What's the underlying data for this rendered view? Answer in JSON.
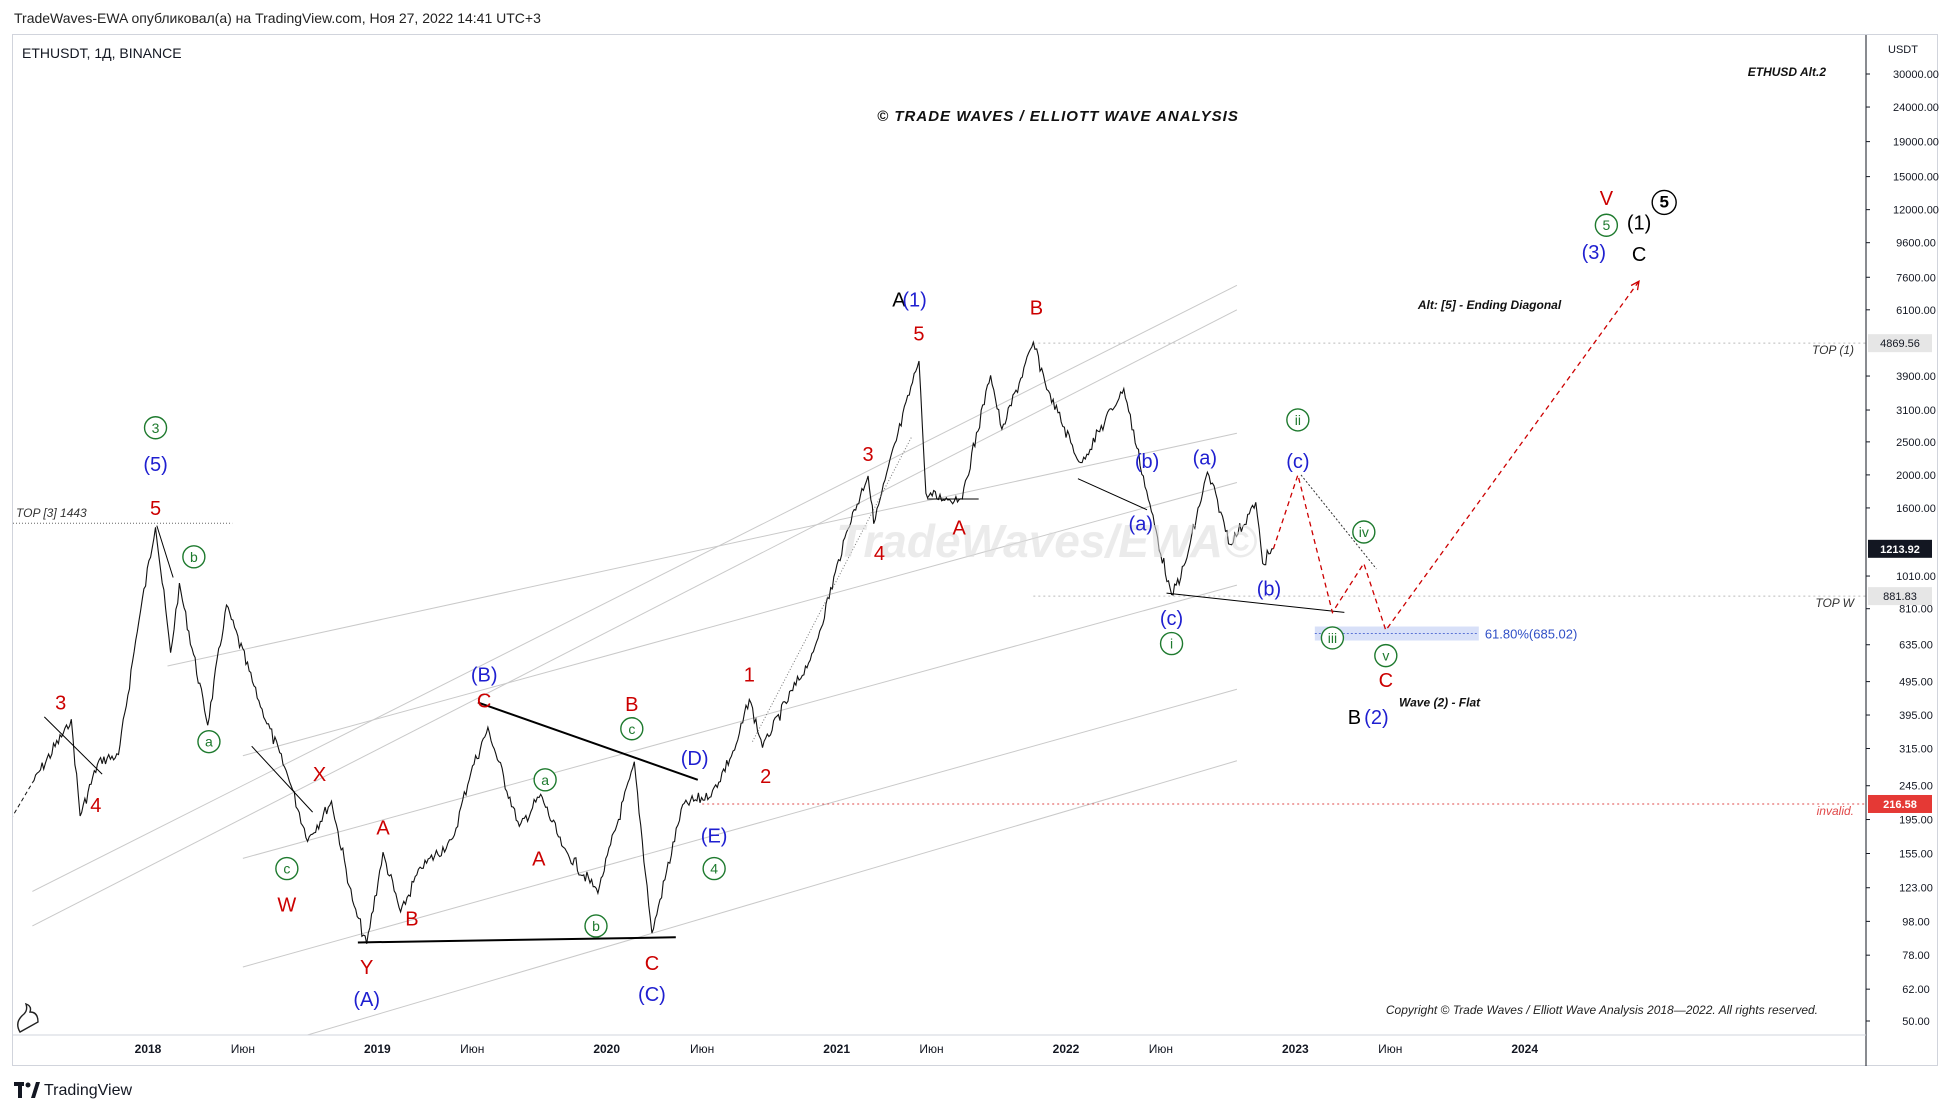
{
  "header": {
    "published_by": "TradeWaves-EWA опубликовал(а) на TradingView.com, Ноя 27, 2022 14:41 UTC+3"
  },
  "footer": {
    "brand": "TradingView"
  },
  "colors": {
    "red": "#cc0000",
    "blue": "#1f1fd0",
    "green": "#1e7a2e",
    "black": "#000000",
    "grid_channel": "#c9c9c9",
    "fib_zone": "#b8c6f2",
    "invalid_line": "#e04848",
    "price_tag_current": "#131722",
    "price_tag_invalid": "#e53935"
  },
  "chart_data": {
    "type": "line",
    "symbol_label": "ETHUSDT, 1Д, BINANCE",
    "title": "© TRADE WAVES / ELLIOTT WAVE ANALYSIS",
    "top_right_note": "ETHUSD  Alt.2",
    "copyright": "Copyright © Trade Waves / Elliott Wave Analysis 2018—2022. All rights reserved.",
    "y_scale": "log",
    "y_unit": "USDT",
    "ylim": [
      50,
      30000
    ],
    "y_ticks": [
      30000,
      24000,
      19000,
      15000,
      12000,
      9600,
      7600,
      6100,
      4869.56,
      3900,
      3100,
      2500,
      2000,
      1600,
      1213.92,
      1010,
      881.83,
      810,
      635,
      495,
      395,
      315,
      245,
      216.58,
      195,
      155,
      123,
      98,
      78,
      62,
      50
    ],
    "y_tick_labels": [
      "30000.00",
      "24000.00",
      "19000.00",
      "15000.00",
      "12000.00",
      "9600.00",
      "7600.00",
      "6100.00",
      "4869.56",
      "3900.00",
      "3100.00",
      "2500.00",
      "2000.00",
      "1600.00",
      "1213.92",
      "1010.00",
      "881.83",
      "810.00",
      "635.00",
      "495.00",
      "395.00",
      "315.00",
      "245.00",
      "216.58",
      "195.00",
      "155.00",
      "123.00",
      "98.00",
      "78.00",
      "62.00",
      "50.00"
    ],
    "x_ticks": [
      {
        "date": "2018-01-01",
        "label": "2018",
        "bold": true
      },
      {
        "date": "2018-06-01",
        "label": "Июн",
        "bold": false
      },
      {
        "date": "2019-01-01",
        "label": "2019",
        "bold": true
      },
      {
        "date": "2019-06-01",
        "label": "Июн",
        "bold": false
      },
      {
        "date": "2020-01-01",
        "label": "2020",
        "bold": true
      },
      {
        "date": "2020-06-01",
        "label": "Июн",
        "bold": false
      },
      {
        "date": "2021-01-01",
        "label": "2021",
        "bold": true
      },
      {
        "date": "2021-06-01",
        "label": "Июн",
        "bold": false
      },
      {
        "date": "2022-01-01",
        "label": "2022",
        "bold": true
      },
      {
        "date": "2022-06-01",
        "label": "Июн",
        "bold": false
      },
      {
        "date": "2023-01-01",
        "label": "2023",
        "bold": true
      },
      {
        "date": "2023-06-01",
        "label": "Июн",
        "bold": false
      },
      {
        "date": "2024-01-01",
        "label": "2024",
        "bold": true
      }
    ],
    "price_series": [
      {
        "date": "2017-07-01",
        "price": 250
      },
      {
        "date": "2017-09-01",
        "price": 380
      },
      {
        "date": "2017-09-15",
        "price": 200
      },
      {
        "date": "2017-10-15",
        "price": 290
      },
      {
        "date": "2017-11-15",
        "price": 300
      },
      {
        "date": "2017-12-15",
        "price": 700
      },
      {
        "date": "2018-01-13",
        "price": 1420
      },
      {
        "date": "2018-02-06",
        "price": 600
      },
      {
        "date": "2018-02-20",
        "price": 950
      },
      {
        "date": "2018-04-06",
        "price": 370
      },
      {
        "date": "2018-05-06",
        "price": 830
      },
      {
        "date": "2018-06-29",
        "price": 420
      },
      {
        "date": "2018-08-14",
        "price": 255
      },
      {
        "date": "2018-09-12",
        "price": 170
      },
      {
        "date": "2018-10-20",
        "price": 220
      },
      {
        "date": "2018-11-25",
        "price": 108
      },
      {
        "date": "2018-12-15",
        "price": 84
      },
      {
        "date": "2019-01-10",
        "price": 155
      },
      {
        "date": "2019-02-07",
        "price": 104
      },
      {
        "date": "2019-03-10",
        "price": 140
      },
      {
        "date": "2019-05-01",
        "price": 170
      },
      {
        "date": "2019-05-30",
        "price": 270
      },
      {
        "date": "2019-06-26",
        "price": 360
      },
      {
        "date": "2019-08-15",
        "price": 185
      },
      {
        "date": "2019-09-18",
        "price": 230
      },
      {
        "date": "2019-10-24",
        "price": 160
      },
      {
        "date": "2019-12-18",
        "price": 120
      },
      {
        "date": "2020-02-14",
        "price": 285
      },
      {
        "date": "2020-03-13",
        "price": 90
      },
      {
        "date": "2020-05-01",
        "price": 215
      },
      {
        "date": "2020-06-15",
        "price": 230
      },
      {
        "date": "2020-07-25",
        "price": 320
      },
      {
        "date": "2020-08-15",
        "price": 440
      },
      {
        "date": "2020-09-05",
        "price": 320
      },
      {
        "date": "2020-11-25",
        "price": 600
      },
      {
        "date": "2021-01-19",
        "price": 1400
      },
      {
        "date": "2021-02-20",
        "price": 2000
      },
      {
        "date": "2021-03-01",
        "price": 1450
      },
      {
        "date": "2021-05-12",
        "price": 4370
      },
      {
        "date": "2021-05-23",
        "price": 1750
      },
      {
        "date": "2021-06-22",
        "price": 1700
      },
      {
        "date": "2021-07-20",
        "price": 1720
      },
      {
        "date": "2021-09-03",
        "price": 3950
      },
      {
        "date": "2021-09-21",
        "price": 2700
      },
      {
        "date": "2021-11-10",
        "price": 4869.56
      },
      {
        "date": "2021-12-04",
        "price": 3500
      },
      {
        "date": "2022-01-24",
        "price": 2150
      },
      {
        "date": "2022-04-03",
        "price": 3580
      },
      {
        "date": "2022-05-12",
        "price": 1700
      },
      {
        "date": "2022-06-18",
        "price": 880
      },
      {
        "date": "2022-07-10",
        "price": 1100
      },
      {
        "date": "2022-08-14",
        "price": 2030
      },
      {
        "date": "2022-09-07",
        "price": 1500
      },
      {
        "date": "2022-09-19",
        "price": 1250
      },
      {
        "date": "2022-10-30",
        "price": 1650
      },
      {
        "date": "2022-11-10",
        "price": 1100
      },
      {
        "date": "2022-11-27",
        "price": 1213.92
      }
    ],
    "projection_path": [
      {
        "date": "2022-11-27",
        "price": 1213.92
      },
      {
        "date": "2023-01-05",
        "price": 2000
      },
      {
        "date": "2023-03-01",
        "price": 790
      },
      {
        "date": "2023-04-20",
        "price": 1100
      },
      {
        "date": "2023-05-25",
        "price": 700
      },
      {
        "date": "2024-07-01",
        "price": 7400
      }
    ],
    "levels": [
      {
        "name": "top_1",
        "price": 4869.56,
        "label": "TOP (1)"
      },
      {
        "name": "top_w",
        "price": 881.83,
        "label": "TOP W"
      },
      {
        "name": "top_3",
        "price": 1443,
        "label": "TOP [3] 1443"
      },
      {
        "name": "invalid",
        "price": 216.58,
        "label": "invalid."
      }
    ],
    "fib_zone": {
      "label": "61.80%(685.02)",
      "price": 685.02
    },
    "current_price": 1213.92,
    "text_annotations": [
      {
        "text": "Alt: [5] - Ending Diagonal",
        "date": "2023-07-15",
        "price": 6300,
        "style": "note"
      },
      {
        "text": "Wave (2) - Flat",
        "date": "2023-06-15",
        "price": 430,
        "style": "note"
      }
    ],
    "wave_labels": [
      {
        "text": "3",
        "color": "red",
        "date": "2017-08-15",
        "price": 430
      },
      {
        "text": "4",
        "color": "red",
        "date": "2017-10-10",
        "price": 215
      },
      {
        "text": "5",
        "color": "red",
        "date": "2018-01-13",
        "price": 1600
      },
      {
        "text": "(5)",
        "color": "blue",
        "date": "2018-01-13",
        "price": 2150
      },
      {
        "text": "3",
        "color": "green_circle",
        "date": "2018-01-13",
        "price": 2750
      },
      {
        "text": "b",
        "color": "green_circle",
        "date": "2018-03-15",
        "price": 1150
      },
      {
        "text": "a",
        "color": "green_circle",
        "date": "2018-04-08",
        "price": 330
      },
      {
        "text": "X",
        "color": "red",
        "date": "2018-10-01",
        "price": 265
      },
      {
        "text": "c",
        "color": "green_circle",
        "date": "2018-08-10",
        "price": 140
      },
      {
        "text": "W",
        "color": "red",
        "date": "2018-08-10",
        "price": 110
      },
      {
        "text": "A",
        "color": "red",
        "date": "2019-01-10",
        "price": 185
      },
      {
        "text": "B",
        "color": "red",
        "date": "2019-02-25",
        "price": 100
      },
      {
        "text": "Y",
        "color": "red",
        "date": "2018-12-15",
        "price": 72
      },
      {
        "text": "(A)",
        "color": "blue",
        "date": "2018-12-15",
        "price": 58
      },
      {
        "text": "(B)",
        "color": "blue",
        "date": "2019-06-20",
        "price": 520
      },
      {
        "text": "C",
        "color": "red",
        "date": "2019-06-20",
        "price": 435
      },
      {
        "text": "a",
        "color": "green_circle",
        "date": "2019-09-25",
        "price": 255
      },
      {
        "text": "A",
        "color": "red",
        "date": "2019-09-15",
        "price": 150
      },
      {
        "text": "b",
        "color": "green_circle",
        "date": "2019-12-15",
        "price": 95
      },
      {
        "text": "B",
        "color": "red",
        "date": "2020-02-10",
        "price": 425
      },
      {
        "text": "c",
        "color": "green_circle",
        "date": "2020-02-10",
        "price": 360
      },
      {
        "text": "C",
        "color": "red",
        "date": "2020-03-13",
        "price": 74
      },
      {
        "text": "(C)",
        "color": "blue",
        "date": "2020-03-13",
        "price": 60
      },
      {
        "text": "(D)",
        "color": "blue",
        "date": "2020-05-20",
        "price": 295
      },
      {
        "text": "(E)",
        "color": "blue",
        "date": "2020-06-20",
        "price": 175
      },
      {
        "text": "4",
        "color": "green_circle",
        "date": "2020-06-20",
        "price": 140
      },
      {
        "text": "1",
        "color": "red",
        "date": "2020-08-15",
        "price": 520
      },
      {
        "text": "2",
        "color": "red",
        "date": "2020-09-10",
        "price": 262
      },
      {
        "text": "3",
        "color": "red",
        "date": "2021-02-20",
        "price": 2300
      },
      {
        "text": "4",
        "color": "red",
        "date": "2021-03-10",
        "price": 1180
      },
      {
        "text": "5",
        "color": "red",
        "date": "2021-05-12",
        "price": 5200
      },
      {
        "text": "A",
        "color": "black",
        "date": "2021-04-10",
        "price": 6550
      },
      {
        "text": "(1)",
        "color": "blue",
        "date": "2021-05-05",
        "price": 6550
      },
      {
        "text": "A",
        "color": "red",
        "date": "2021-07-15",
        "price": 1400
      },
      {
        "text": "B",
        "color": "red",
        "date": "2021-11-15",
        "price": 6200
      },
      {
        "text": "(b)",
        "color": "blue",
        "date": "2022-05-10",
        "price": 2200
      },
      {
        "text": "(a)",
        "color": "blue",
        "date": "2022-04-30",
        "price": 1440
      },
      {
        "text": "(c)",
        "color": "blue",
        "date": "2022-06-18",
        "price": 760
      },
      {
        "text": "i",
        "color": "green_circle",
        "date": "2022-06-18",
        "price": 640
      },
      {
        "text": "(a)",
        "color": "blue",
        "date": "2022-08-10",
        "price": 2250
      },
      {
        "text": "(b)",
        "color": "blue",
        "date": "2022-11-20",
        "price": 930
      },
      {
        "text": "ii",
        "color": "green_circle",
        "date": "2023-01-05",
        "price": 2900
      },
      {
        "text": "(c)",
        "color": "blue",
        "date": "2023-01-05",
        "price": 2200
      },
      {
        "text": "iii",
        "color": "green_circle",
        "date": "2023-03-01",
        "price": 665
      },
      {
        "text": "iv",
        "color": "green_circle",
        "date": "2023-04-20",
        "price": 1360
      },
      {
        "text": "v",
        "color": "green_circle",
        "date": "2023-05-25",
        "price": 590
      },
      {
        "text": "C",
        "color": "red",
        "date": "2023-05-25",
        "price": 500
      },
      {
        "text": "B",
        "color": "black",
        "date": "2023-04-05",
        "price": 390
      },
      {
        "text": "(2)",
        "color": "blue",
        "date": "2023-05-10",
        "price": 390
      },
      {
        "text": "(3)",
        "color": "blue",
        "date": "2024-04-20",
        "price": 9000
      },
      {
        "text": "5",
        "color": "green_circle",
        "date": "2024-05-10",
        "price": 10800
      },
      {
        "text": "V",
        "color": "red",
        "date": "2024-05-10",
        "price": 13000
      },
      {
        "text": "(1)",
        "color": "black",
        "date": "2024-07-01",
        "price": 11000
      },
      {
        "text": "C",
        "color": "black",
        "date": "2024-07-01",
        "price": 8900
      },
      {
        "text": "5",
        "color": "black_circle",
        "date": "2024-08-10",
        "price": 12600
      }
    ]
  }
}
